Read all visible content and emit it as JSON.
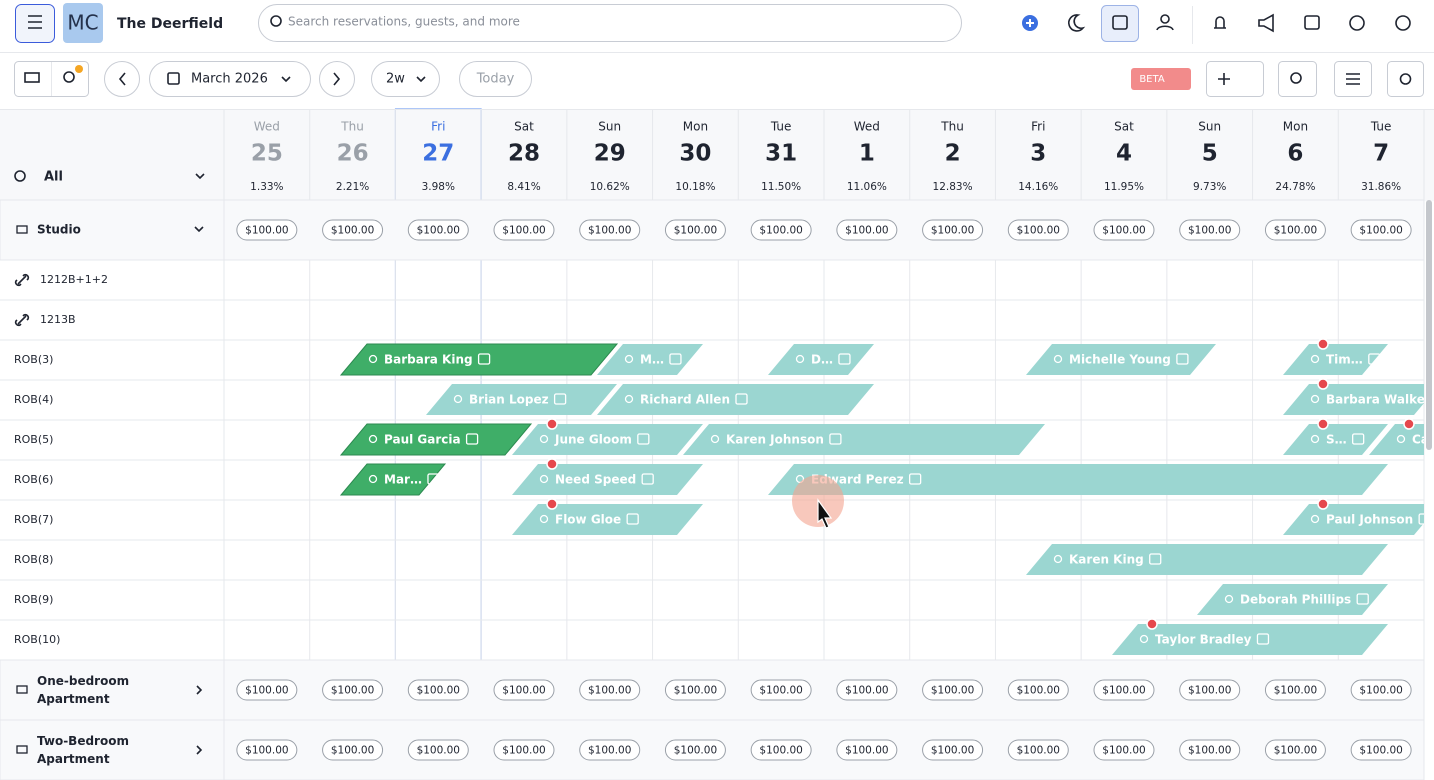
{
  "header": {
    "property_name": "The Deerfield",
    "search_placeholder": "Search reservations, guests, and more"
  },
  "toolbar": {
    "month": "March 2026",
    "range": "2w",
    "today": "Today",
    "beta": "BETA"
  },
  "calendar": {
    "filter": "All",
    "days": [
      {
        "weekday": "Wed",
        "date": 25,
        "occupancy": "1.33%"
      },
      {
        "weekday": "Thu",
        "date": 26,
        "occupancy": "2.21%"
      },
      {
        "weekday": "Fri",
        "date": 27,
        "occupancy": "3.98%"
      },
      {
        "weekday": "Sat",
        "date": 28,
        "occupancy": "8.41%"
      },
      {
        "weekday": "Sun",
        "date": 29,
        "occupancy": "10.62%"
      },
      {
        "weekday": "Mon",
        "date": 30,
        "occupancy": "10.18%"
      },
      {
        "weekday": "Tue",
        "date": 31,
        "occupancy": "11.50%"
      },
      {
        "weekday": "Wed",
        "date": 1,
        "occupancy": "11.06%"
      },
      {
        "weekday": "Thu",
        "date": 2,
        "occupancy": "12.83%"
      },
      {
        "weekday": "Fri",
        "date": 3,
        "occupancy": "14.16%"
      },
      {
        "weekday": "Sat",
        "date": 4,
        "occupancy": "11.95%"
      },
      {
        "weekday": "Sun",
        "date": 5,
        "occupancy": "9.73%"
      },
      {
        "weekday": "Mon",
        "date": 6,
        "occupancy": "24.78%"
      },
      {
        "weekday": "Tue",
        "date": 7,
        "occupancy": "31.86%"
      }
    ],
    "room_types": [
      {
        "name": "Studio",
        "prices": [
          "$100.00",
          "$100.00",
          "$100.00",
          "$100.00",
          "$100.00",
          "$100.00",
          "$100.00",
          "$100.00",
          "$100.00",
          "$100.00",
          "$100.00",
          "$100.00",
          "$100.00",
          "$100.00"
        ]
      },
      {
        "name": "One-bedroom Apartment",
        "prices": [
          "$100.00",
          "$100.00",
          "$100.00",
          "$100.00",
          "$100.00",
          "$100.00",
          "$100.00",
          "$100.00",
          "$100.00",
          "$100.00",
          "$100.00",
          "$100.00",
          "$100.00",
          "$100.00"
        ]
      },
      {
        "name": "Two-Bedroom Apartment",
        "prices": [
          "$100.00",
          "$100.00",
          "$100.00",
          "$100.00",
          "$100.00",
          "$100.00",
          "$100.00",
          "$100.00",
          "$100.00",
          "$100.00",
          "$100.00",
          "$100.00",
          "$100.00",
          "$100.00"
        ]
      }
    ],
    "rooms": [
      {
        "name": "1212B+1+2",
        "reservations": []
      },
      {
        "name": "1213B",
        "reservations": []
      },
      {
        "name": "ROB(3)",
        "reservations": [
          "Barbara King",
          "M…",
          "D…",
          "Michelle Young",
          "Tim…"
        ]
      },
      {
        "name": "ROB(4)",
        "reservations": [
          "Brian Lopez",
          "Richard Allen",
          "Barbara Walker"
        ]
      },
      {
        "name": "ROB(5)",
        "reservations": [
          "Paul Garcia",
          "June Gloom",
          "Karen Johnson",
          "S…",
          "Carol"
        ]
      },
      {
        "name": "ROB(6)",
        "reservations": [
          "Mar…",
          "Need Speed",
          "Edward Perez"
        ]
      },
      {
        "name": "ROB(7)",
        "reservations": [
          "Flow Gloe",
          "Paul Johnson"
        ]
      },
      {
        "name": "ROB(8)",
        "reservations": [
          "Karen King"
        ]
      },
      {
        "name": "ROB(9)",
        "reservations": [
          "Deborah Phillips"
        ]
      },
      {
        "name": "ROB(10)",
        "reservations": [
          "Taylor Bradley"
        ]
      }
    ]
  }
}
